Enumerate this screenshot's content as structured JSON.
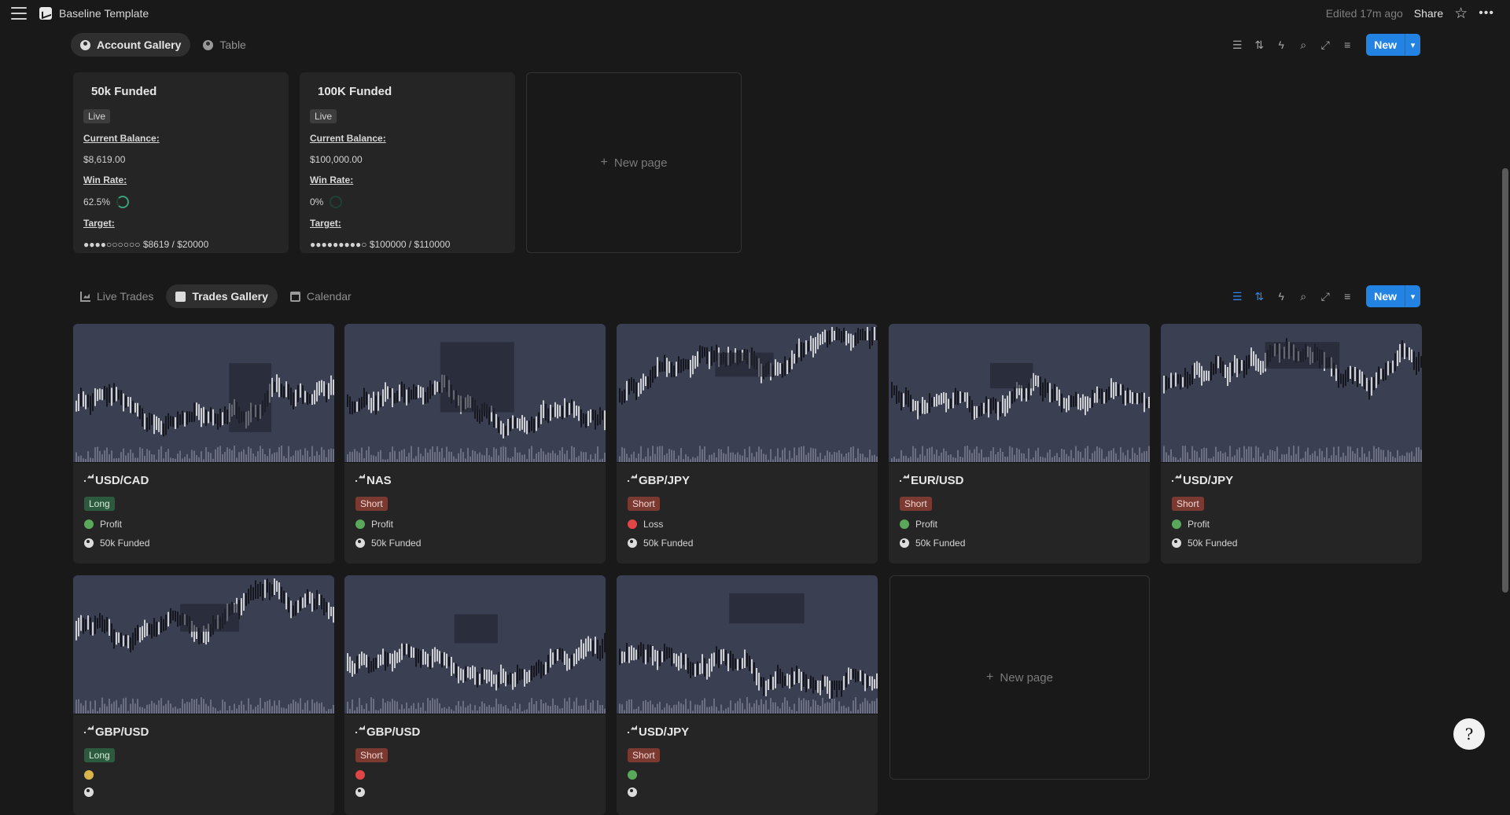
{
  "topbar": {
    "title": "Baseline Template",
    "edited": "Edited 17m ago",
    "share": "Share"
  },
  "accounts_view": {
    "tabs": [
      {
        "label": "Account Gallery",
        "icon": "user-circle-icon"
      },
      {
        "label": "Table",
        "icon": "user-circle-icon"
      }
    ],
    "new_label": "New",
    "cards": [
      {
        "name": "50k Funded",
        "status": "Live",
        "balance_label": "Current Balance:",
        "balance": "$8,619.00",
        "winrate_label": "Win Rate:",
        "winrate": "62.5%",
        "winrate_value": 0.625,
        "target_label": "Target:",
        "target_dots": "●●●●○○○○○○",
        "target_text": "$8619 / $20000"
      },
      {
        "name": "100K Funded",
        "status": "Live",
        "balance_label": "Current Balance:",
        "balance": "$100,000.00",
        "winrate_label": "Win Rate:",
        "winrate": "0%",
        "winrate_value": 0,
        "target_label": "Target:",
        "target_dots": "●●●●●●●●●○",
        "target_text": "$100000 / $110000"
      }
    ],
    "new_page": "New page"
  },
  "trades_view": {
    "tabs": [
      {
        "label": "Live Trades",
        "icon": "chart-icon"
      },
      {
        "label": "Trades Gallery",
        "icon": "docs-icon"
      },
      {
        "label": "Calendar",
        "icon": "calendar-icon"
      }
    ],
    "new_label": "New",
    "cards": [
      {
        "pair": "USD/CAD",
        "direction": "Long",
        "dir_color": "green",
        "result": "Profit",
        "res_color": "green",
        "account": "50k Funded"
      },
      {
        "pair": "NAS",
        "direction": "Short",
        "dir_color": "red",
        "result": "Profit",
        "res_color": "green",
        "account": "50k Funded"
      },
      {
        "pair": "GBP/JPY",
        "direction": "Short",
        "dir_color": "red",
        "result": "Loss",
        "res_color": "red",
        "account": "50k Funded"
      },
      {
        "pair": "EUR/USD",
        "direction": "Short",
        "dir_color": "red",
        "result": "Profit",
        "res_color": "green",
        "account": "50k Funded"
      },
      {
        "pair": "USD/JPY",
        "direction": "Short",
        "dir_color": "red",
        "result": "Profit",
        "res_color": "green",
        "account": "50k Funded"
      },
      {
        "pair": "GBP/USD",
        "direction": "Long",
        "dir_color": "green",
        "result": "",
        "res_color": "yellow",
        "account": ""
      },
      {
        "pair": "GBP/USD",
        "direction": "Short",
        "dir_color": "red",
        "result": "",
        "res_color": "red",
        "account": ""
      },
      {
        "pair": "USD/JPY",
        "direction": "Short",
        "dir_color": "red",
        "result": "",
        "res_color": "green",
        "account": ""
      }
    ],
    "new_page": "New page"
  }
}
